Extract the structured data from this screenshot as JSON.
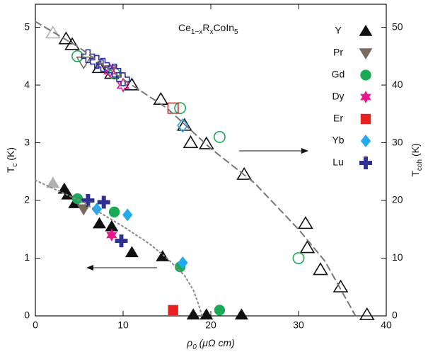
{
  "chart_data": {
    "type": "scatter",
    "title": [
      {
        "text": "Ce"
      },
      {
        "text": "1−x",
        "sub": true
      },
      {
        "text": "R"
      },
      {
        "text": "x",
        "sub": true
      },
      {
        "text": "CoIn"
      },
      {
        "text": "5",
        "sub": true
      }
    ],
    "xlabel": [
      {
        "text": "ρ"
      },
      {
        "text": "0",
        "sub": true
      },
      {
        "text": " (μΩ cm)"
      }
    ],
    "ylabel": [
      {
        "text": "T"
      },
      {
        "text": "c",
        "sub": true
      },
      {
        "text": " (K)"
      }
    ],
    "y2label": [
      {
        "text": "T"
      },
      {
        "text": "coh",
        "sub": true
      },
      {
        "text": " (K)"
      }
    ],
    "xlim": [
      0,
      40
    ],
    "xticks": [
      0,
      10,
      20,
      30,
      40
    ],
    "ylim": [
      0,
      5.4
    ],
    "yticks": [
      0,
      1,
      2,
      3,
      4,
      5
    ],
    "y2lim": [
      0,
      54
    ],
    "y2ticks": [
      0,
      10,
      20,
      30,
      40,
      50
    ],
    "legend": "upper right",
    "series": [
      {
        "name": "Y",
        "color": "#111111",
        "marker": "triangle",
        "x": [
          3.3,
          3.7,
          4.5,
          7.3,
          8.7,
          11,
          14.5,
          18,
          19.5,
          23.5
        ],
        "values": [
          2.2,
          2.1,
          1.95,
          1.6,
          1.55,
          1.1,
          1.03,
          0.02,
          0.02,
          0.02
        ]
      },
      {
        "name": "Pr",
        "color": "#7a6a5e",
        "marker": "triangle-down",
        "x": [
          5.5
        ],
        "values": [
          1.85
        ]
      },
      {
        "name": "Gd",
        "color": "#1aaa55",
        "marker": "circle",
        "x": [
          4.8,
          9,
          16.5,
          21
        ],
        "values": [
          2.03,
          1.8,
          0.85,
          0.1
        ]
      },
      {
        "name": "Dy",
        "color": "#e6198c",
        "marker": "star",
        "x": [
          8.7
        ],
        "values": [
          1.4
        ]
      },
      {
        "name": "Er",
        "color": "#e82020",
        "marker": "square",
        "x": [
          15.7
        ],
        "values": [
          0.1
        ]
      },
      {
        "name": "Yb",
        "color": "#22aaee",
        "marker": "diamond",
        "x": [
          7,
          10.5,
          16.8
        ],
        "values": [
          1.85,
          1.75,
          0.92
        ]
      },
      {
        "name": "Lu",
        "color": "#2e3192",
        "marker": "plus",
        "x": [
          6,
          7.8,
          9.8
        ],
        "values": [
          2.0,
          1.97,
          1.3
        ]
      },
      {
        "color": "#b0b0b0",
        "marker": "triangle",
        "x": [
          2.0
        ],
        "values": [
          2.3
        ]
      },
      {
        "color": "#b0b0b0",
        "marker": "triangle",
        "open": true,
        "axis": "y2",
        "x": [
          2.0
        ],
        "values": [
          49
        ]
      },
      {
        "color": "#111111",
        "marker": "triangle",
        "open": true,
        "axis": "y2",
        "x": [
          3.5,
          4.2,
          7.3,
          8.7,
          11,
          14.3,
          17,
          17.7,
          19.5,
          23.8,
          30.8,
          31,
          32.5,
          34.8,
          37.8
        ],
        "values": [
          48,
          47,
          43,
          42,
          40,
          37.5,
          33,
          30,
          29.8,
          24.5,
          16,
          11.8,
          8,
          5,
          0.2
        ]
      },
      {
        "color": "#7a6a5e",
        "marker": "triangle-down",
        "open": true,
        "axis": "y2",
        "x": [
          5.5,
          8.5
        ],
        "values": [
          44,
          42.5
        ]
      },
      {
        "color": "#1aaa55",
        "marker": "circle",
        "open": true,
        "axis": "y2",
        "x": [
          4.8,
          9,
          16.5,
          21,
          30
        ],
        "values": [
          45,
          42,
          36,
          31,
          10
        ]
      },
      {
        "color": "#e6198c",
        "marker": "star",
        "open": true,
        "axis": "y2",
        "x": [
          8.5,
          10
        ],
        "values": [
          42.5,
          40
        ]
      },
      {
        "color": "#e82020",
        "marker": "square",
        "open": true,
        "axis": "y2",
        "x": [
          15.7
        ],
        "values": [
          36
        ]
      },
      {
        "color": "#22aaee",
        "marker": "diamond",
        "open": true,
        "axis": "y2",
        "x": [
          16.8
        ],
        "values": [
          33
        ]
      },
      {
        "color": "#2e3192",
        "marker": "plus",
        "open": true,
        "axis": "y2",
        "x": [
          6,
          7,
          7.7,
          9,
          10
        ],
        "values": [
          45,
          44,
          43.5,
          42.5,
          41
        ]
      },
      {
        "color": "#777777",
        "style": "dashed",
        "axis": "y2",
        "x": [
          0,
          5,
          10,
          15,
          20,
          25,
          30,
          33,
          36.5
        ],
        "values": [
          51,
          46.5,
          41,
          36,
          29,
          23,
          15,
          9.5,
          0
        ]
      },
      {
        "color": "#888888",
        "style": "dotted",
        "x": [
          0,
          5,
          10,
          13,
          15,
          17,
          18,
          18.6,
          19
        ],
        "values": [
          2.35,
          2.0,
          1.55,
          1.25,
          1.0,
          0.7,
          0.45,
          0.2,
          0
        ]
      }
    ]
  }
}
